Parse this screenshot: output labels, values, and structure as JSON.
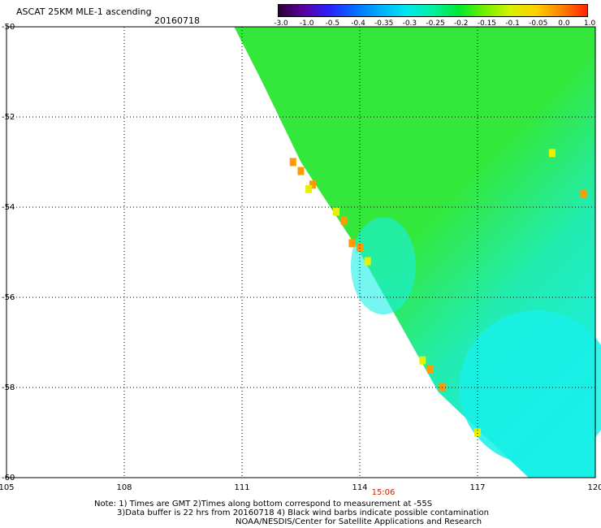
{
  "header": {
    "title": "ASCAT 25KM MLE-1 ascending",
    "date": "20160718"
  },
  "colorbar": {
    "labels": [
      "-3.0",
      "-1.0",
      "-0.5",
      "-0.4",
      "-0.35",
      "-0.3",
      "-0.25",
      "-0.2",
      "-0.15",
      "-0.1",
      "-0.05",
      "0.0",
      "1.0"
    ],
    "colors": [
      "#2a0030",
      "#5a00a0",
      "#2a20ff",
      "#0070ff",
      "#00b0ff",
      "#00e8f0",
      "#00f0a0",
      "#00e830",
      "#70f000",
      "#d8f000",
      "#ffd000",
      "#ff8000",
      "#ff2000"
    ]
  },
  "map": {
    "lon_range": [
      105,
      120
    ],
    "lat_range": [
      -60,
      -50
    ],
    "lon_ticks": [
      "105",
      "108",
      "111",
      "114",
      "117",
      "120"
    ],
    "lat_ticks": [
      "-50",
      "-52",
      "-54",
      "-56",
      "-58",
      "-60"
    ],
    "time_label": "15:06",
    "swath_color_main": "#33e83a",
    "swath_color_low": "#19f0e8",
    "swath_color_edge": "#ff9a00"
  },
  "notes": {
    "line1": "Note: 1) Times are GMT 2)Times along bottom correspond to measurement at -55S",
    "line2": "3)Data buffer is 22 hrs from 20160718 4) Black wind barbs indicate possible contamination",
    "line3": "NOAA/NESDIS/Center for Satellite Applications and Research"
  }
}
